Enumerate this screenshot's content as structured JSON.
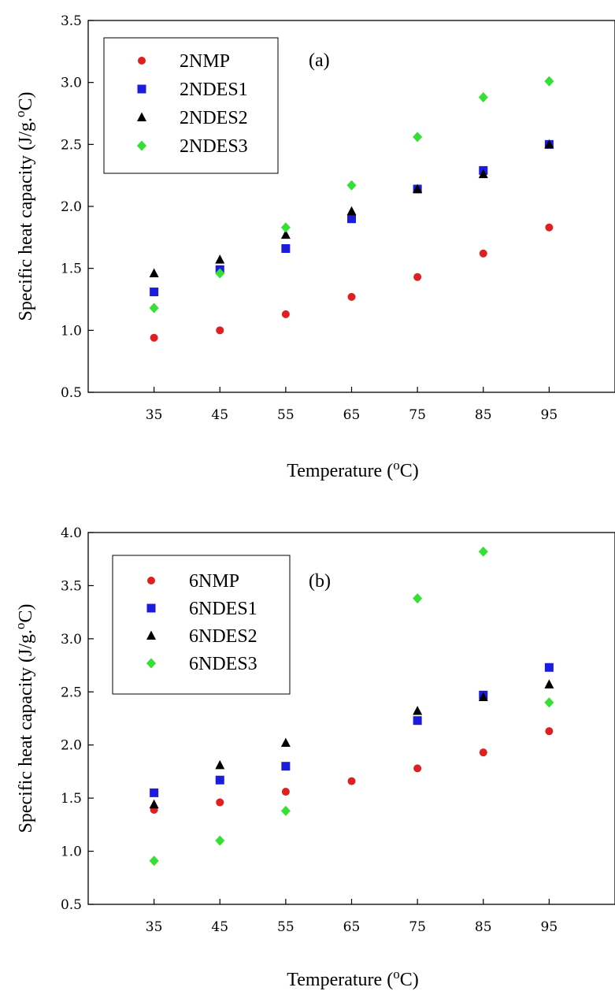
{
  "chart_data": [
    {
      "type": "scatter",
      "panel_label": "(a)",
      "xlabel": "Temperature",
      "xlabel_unit_base": "C",
      "xlabel_unit_sup": "o",
      "ylabel": "Specific heat capacity (J/g.",
      "ylabel_sup": "o",
      "ylabel_end": "C)",
      "x_ticks": [
        "35",
        "45",
        "55",
        "65",
        "75",
        "85",
        "95"
      ],
      "y_ticks": [
        "0.5",
        "1.0",
        "1.5",
        "2.0",
        "2.5",
        "3.0",
        "3.5"
      ],
      "xlim": [
        25,
        105
      ],
      "ylim": [
        0.5,
        3.5
      ],
      "legend_position": "top-left",
      "x": [
        35,
        45,
        55,
        65,
        75,
        85,
        95
      ],
      "series": [
        {
          "name": "2NMP",
          "marker": "circle",
          "color": "#e02020",
          "values": [
            0.94,
            1.0,
            1.13,
            1.27,
            1.43,
            1.62,
            1.83
          ]
        },
        {
          "name": "2NDES1",
          "marker": "square",
          "color": "#1c1cdc",
          "values": [
            1.31,
            1.49,
            1.66,
            1.9,
            2.14,
            2.29,
            2.5
          ]
        },
        {
          "name": "2NDES2",
          "marker": "triangle",
          "color": "#000000",
          "values": [
            1.46,
            1.57,
            1.77,
            1.96,
            2.14,
            2.26,
            2.5
          ]
        },
        {
          "name": "2NDES3",
          "marker": "diamond",
          "color": "#33e033",
          "values": [
            1.18,
            1.46,
            1.83,
            2.17,
            2.56,
            2.88,
            3.01
          ]
        }
      ]
    },
    {
      "type": "scatter",
      "panel_label": "(b)",
      "xlabel": "Temperature",
      "xlabel_unit_base": "C",
      "xlabel_unit_sup": "o",
      "ylabel": "Specific heat capacity (J/g.",
      "ylabel_sup": "o",
      "ylabel_end": "C)",
      "x_ticks": [
        "35",
        "45",
        "55",
        "65",
        "75",
        "85",
        "95"
      ],
      "y_ticks": [
        "0.5",
        "1.0",
        "1.5",
        "2.0",
        "2.5",
        "3.0",
        "3.5",
        "4.0"
      ],
      "xlim": [
        25,
        105
      ],
      "ylim": [
        0.5,
        4.0
      ],
      "legend_position": "top-left",
      "series": [
        {
          "name": "6NMP",
          "marker": "circle",
          "color": "#e02020",
          "x": [
            35,
            45,
            55,
            65,
            75,
            85,
            95
          ],
          "values": [
            1.39,
            1.46,
            1.56,
            1.66,
            1.78,
            1.93,
            2.13
          ]
        },
        {
          "name": "6NDES1",
          "marker": "square",
          "color": "#1c1cdc",
          "x": [
            35,
            45,
            55,
            75,
            85,
            95
          ],
          "values": [
            1.55,
            1.67,
            1.8,
            2.23,
            2.47,
            2.73
          ]
        },
        {
          "name": "6NDES2",
          "marker": "triangle",
          "color": "#000000",
          "x": [
            35,
            45,
            55,
            75,
            85,
            95
          ],
          "values": [
            1.44,
            1.81,
            2.02,
            2.32,
            2.45,
            2.57
          ]
        },
        {
          "name": "6NDES3",
          "marker": "diamond",
          "color": "#33e033",
          "x": [
            35,
            45,
            55,
            75,
            85,
            95
          ],
          "values": [
            0.91,
            1.1,
            1.38,
            3.38,
            3.82,
            2.4
          ]
        }
      ]
    }
  ]
}
